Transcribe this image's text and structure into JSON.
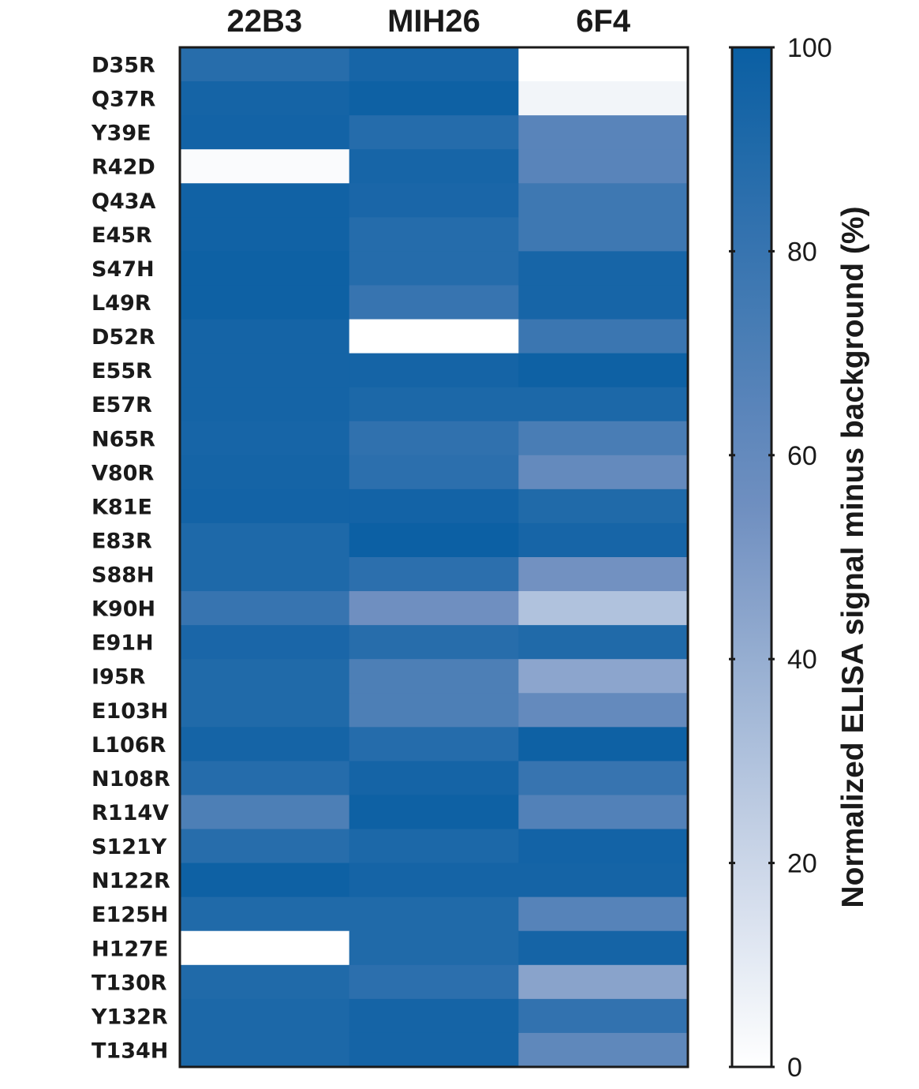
{
  "chart_data": {
    "type": "heatmap",
    "columns": [
      "22B3",
      "MIH26",
      "6F4"
    ],
    "rows": [
      "D35R",
      "Q37R",
      "Y39E",
      "R42D",
      "Q43A",
      "E45R",
      "S47H",
      "L49R",
      "D52R",
      "E55R",
      "E57R",
      "N65R",
      "V80R",
      "K81E",
      "E83R",
      "S88H",
      "K90H",
      "E91H",
      "I95R",
      "E103H",
      "L106R",
      "N108R",
      "R114V",
      "S121Y",
      "N122R",
      "E125H",
      "H127E",
      "T130R",
      "Y132R",
      "T134H"
    ],
    "values": [
      [
        87,
        94,
        0
      ],
      [
        95,
        98,
        5
      ],
      [
        96,
        88,
        65
      ],
      [
        2,
        94,
        65
      ],
      [
        97,
        93,
        77
      ],
      [
        97,
        88,
        77
      ],
      [
        98,
        88,
        94
      ],
      [
        98,
        80,
        94
      ],
      [
        95,
        0,
        78
      ],
      [
        95,
        95,
        98
      ],
      [
        95,
        92,
        92
      ],
      [
        94,
        83,
        72
      ],
      [
        95,
        85,
        60
      ],
      [
        96,
        96,
        90
      ],
      [
        91,
        99,
        94
      ],
      [
        91,
        85,
        54
      ],
      [
        80,
        55,
        30
      ],
      [
        93,
        87,
        90
      ],
      [
        90,
        70,
        44
      ],
      [
        90,
        70,
        60
      ],
      [
        95,
        88,
        98
      ],
      [
        88,
        95,
        80
      ],
      [
        70,
        98,
        68
      ],
      [
        87,
        92,
        96
      ],
      [
        98,
        95,
        95
      ],
      [
        90,
        90,
        66
      ],
      [
        0,
        90,
        95
      ],
      [
        90,
        85,
        45
      ],
      [
        92,
        95,
        82
      ],
      [
        92,
        95,
        62
      ]
    ],
    "colorbar": {
      "range": [
        0,
        100
      ],
      "ticks": [
        "0",
        "20",
        "40",
        "60",
        "80",
        "100"
      ],
      "label": "Normalized ELISA signal minus background (%)",
      "low_color": "#ffffff",
      "mid_color": "#6f8fc0",
      "high_color": "#0a5fa3"
    }
  }
}
